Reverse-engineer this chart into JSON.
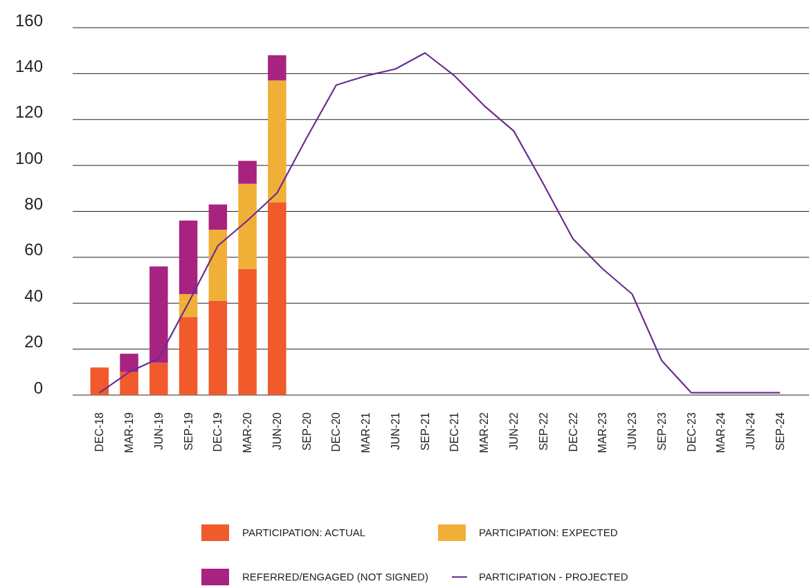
{
  "chart_data": {
    "type": "bar",
    "stacked": true,
    "categories": [
      "DEC-18",
      "MAR-19",
      "JUN-19",
      "SEP-19",
      "DEC-19",
      "MAR-20",
      "JUN-20",
      "SEP-20",
      "DEC-20",
      "MAR-21",
      "JUN-21",
      "SEP-21",
      "DEC-21",
      "MAR-22",
      "JUN-22",
      "SEP-22",
      "DEC-22",
      "MAR-23",
      "JUN-23",
      "SEP-23",
      "DEC-23",
      "MAR-24",
      "JUN-24",
      "SEP-24"
    ],
    "series": [
      {
        "name": "PARTICIPATION: ACTUAL",
        "color": "#f15a2b",
        "values": [
          12,
          10,
          14,
          34,
          41,
          55,
          84,
          null,
          null,
          null,
          null,
          null,
          null,
          null,
          null,
          null,
          null,
          null,
          null,
          null,
          null,
          null,
          null,
          null
        ]
      },
      {
        "name": "PARTICIPATION: EXPECTED",
        "color": "#f0b037",
        "values": [
          null,
          null,
          null,
          10,
          31,
          37,
          53,
          null,
          null,
          null,
          null,
          null,
          null,
          null,
          null,
          null,
          null,
          null,
          null,
          null,
          null,
          null,
          null,
          null
        ]
      },
      {
        "name": "REFERRED/ENGAGED (NOT SIGNED)",
        "color": "#a8237f",
        "values": [
          null,
          8,
          42,
          32,
          11,
          10,
          11,
          null,
          null,
          null,
          null,
          null,
          null,
          null,
          null,
          null,
          null,
          null,
          null,
          null,
          null,
          null,
          null,
          null
        ]
      },
      {
        "name": "PARTICIPATION - PROJECTED",
        "type": "line",
        "color": "#6a2c91",
        "values": [
          1,
          10,
          16,
          40,
          65,
          76,
          88,
          112,
          135,
          139,
          142,
          149,
          139,
          126,
          115,
          92,
          68,
          55,
          44,
          15,
          1,
          1,
          1,
          1
        ]
      }
    ],
    "ylim": [
      0,
      160
    ],
    "yticks": [
      0,
      20,
      40,
      60,
      80,
      100,
      120,
      140,
      160
    ],
    "grid": "y",
    "legend": "bottom",
    "marker": "none",
    "line_style": "solid"
  }
}
